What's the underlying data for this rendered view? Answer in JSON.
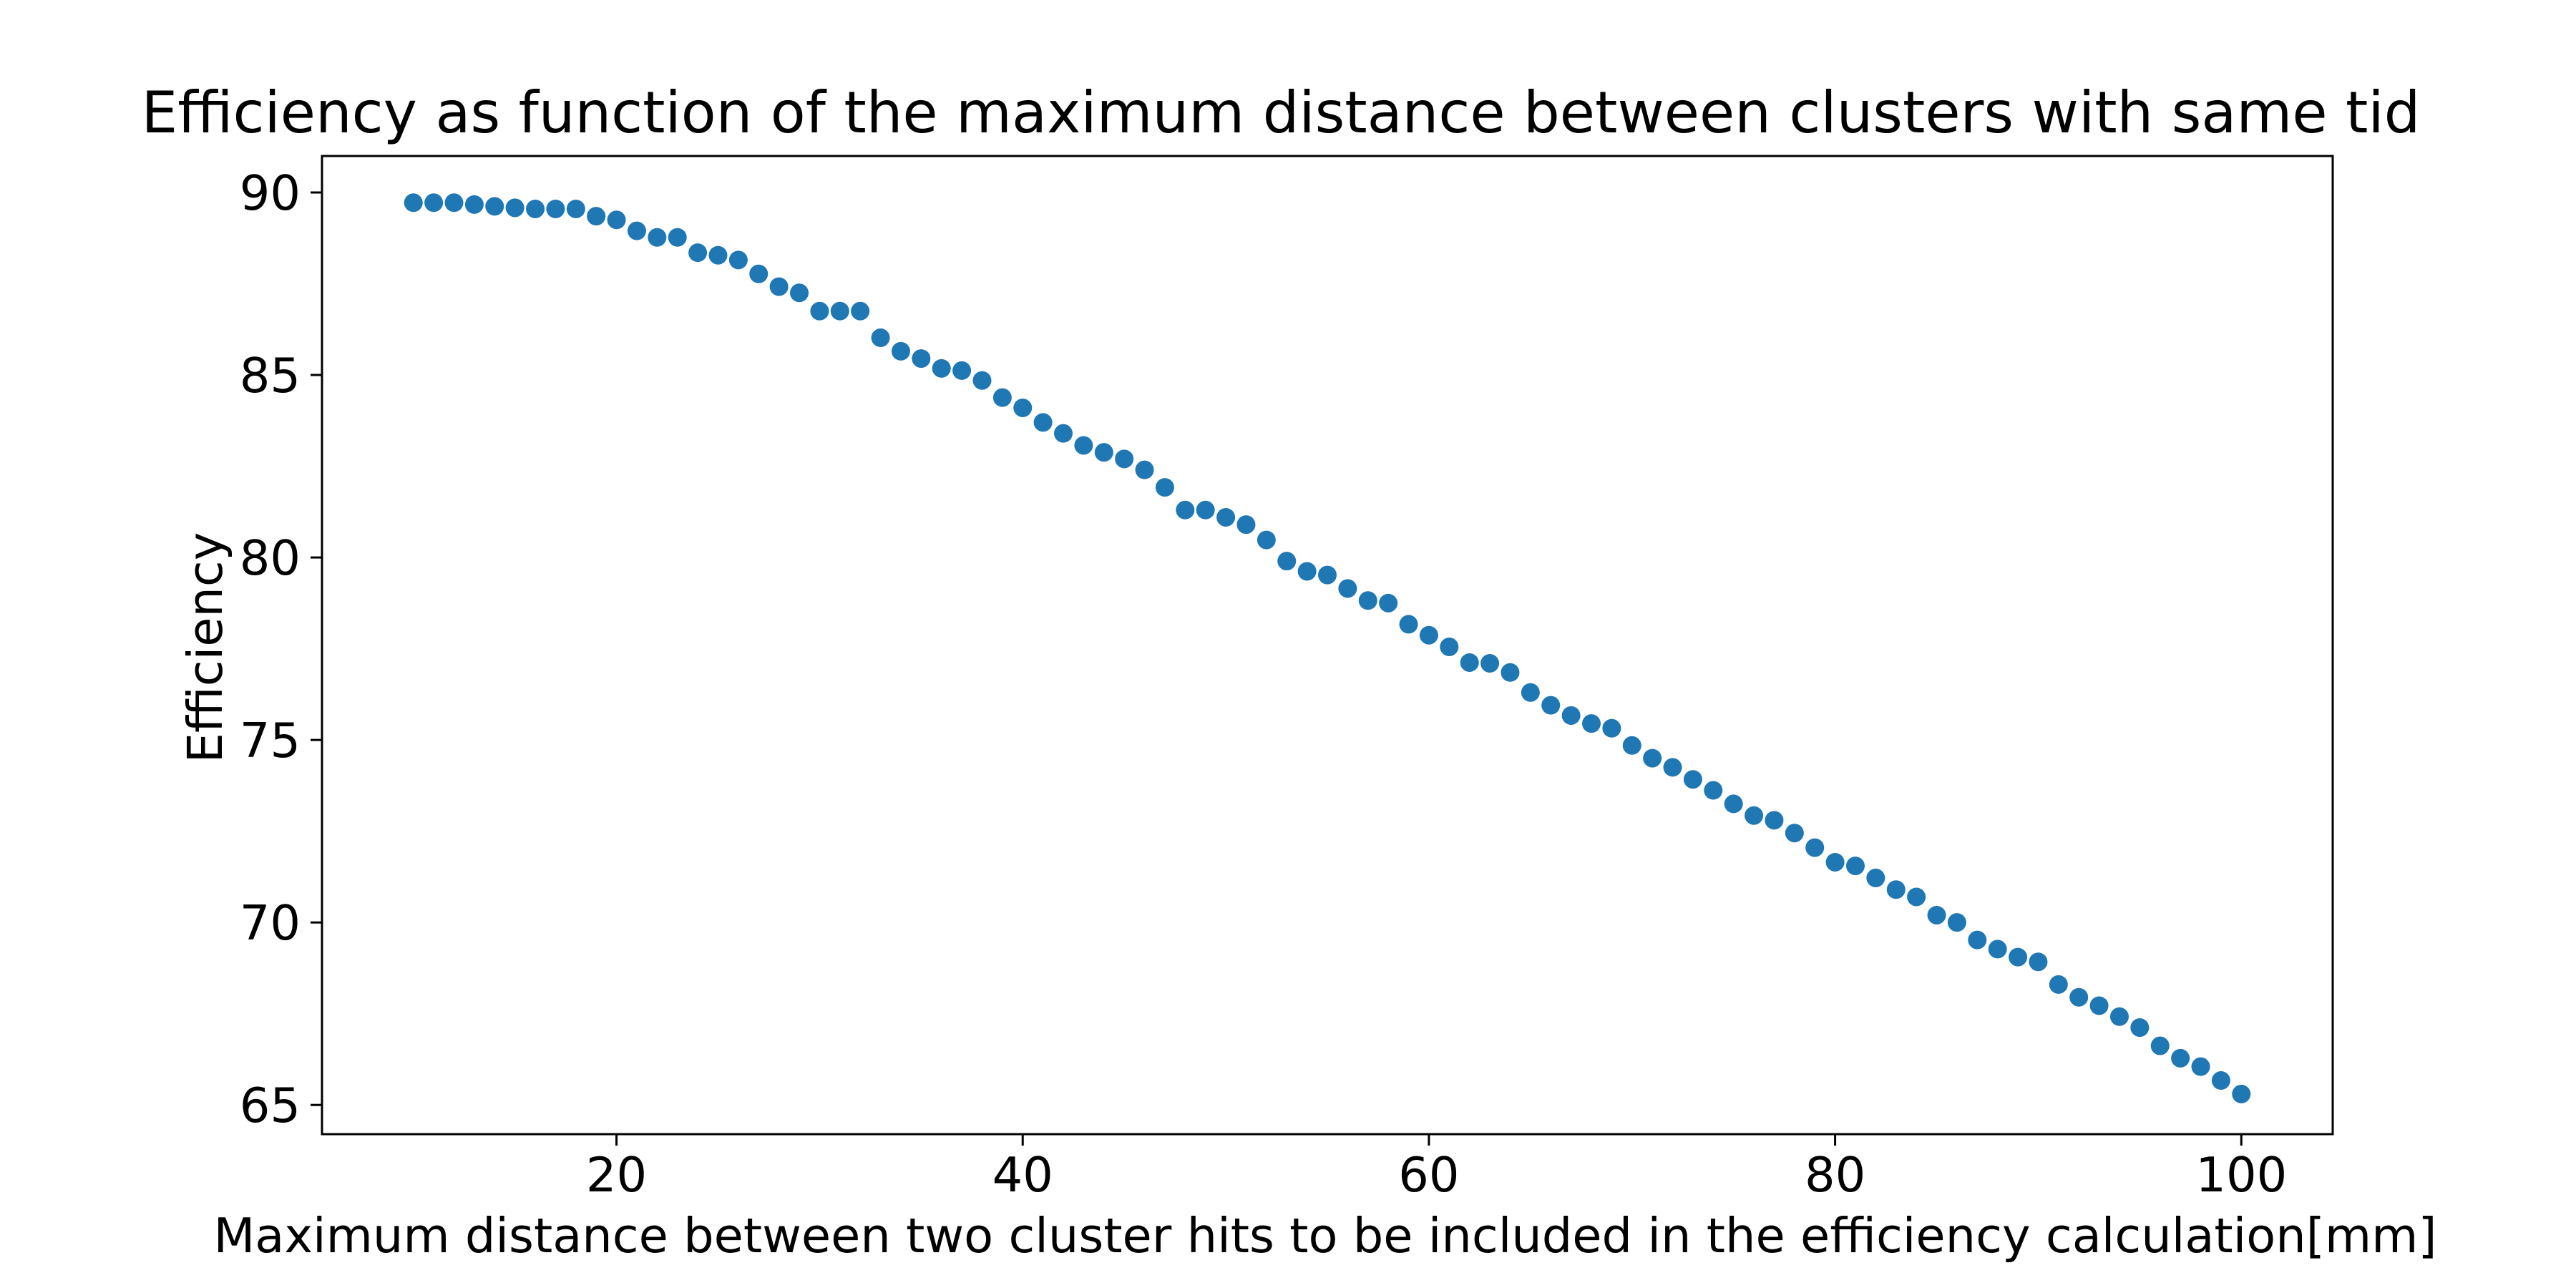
{
  "chart_data": {
    "type": "scatter",
    "title": "Efficiency as function of the maximum distance between clusters with same tid",
    "xlabel": "Maximum distance between two cluster hits to be included in the efficiency calculation[mm]",
    "ylabel": "Efficiency",
    "xlim": [
      5.5,
      104.5
    ],
    "ylim": [
      64.2,
      91.0
    ],
    "xticks": [
      20,
      40,
      60,
      80,
      100
    ],
    "yticks": [
      65,
      70,
      75,
      80,
      85,
      90
    ],
    "grid": false,
    "marker_color": "#1f77b4",
    "series": [
      {
        "x": [
          10,
          11,
          12,
          13,
          14,
          15,
          16,
          17,
          18,
          19,
          20,
          21,
          22,
          23,
          24,
          25,
          26,
          27,
          28,
          29,
          30,
          31,
          32,
          33,
          34,
          35,
          36,
          37,
          38,
          39,
          40,
          41,
          42,
          43,
          44,
          45,
          46,
          47,
          48,
          49,
          50,
          51,
          52,
          53,
          54,
          55,
          56,
          57,
          58,
          59,
          60,
          61,
          62,
          63,
          64,
          65,
          66,
          67,
          68,
          69,
          70,
          71,
          72,
          73,
          74,
          75,
          76,
          77,
          78,
          79,
          80,
          81,
          82,
          83,
          84,
          85,
          86,
          87,
          88,
          89,
          90,
          91,
          92,
          93,
          94,
          95,
          96,
          97,
          98,
          99,
          100
        ],
        "y": [
          89.72,
          89.72,
          89.72,
          89.67,
          89.62,
          89.58,
          89.55,
          89.55,
          89.55,
          89.35,
          89.25,
          88.95,
          88.77,
          88.77,
          88.35,
          88.28,
          88.15,
          87.77,
          87.42,
          87.25,
          86.75,
          86.75,
          86.75,
          86.02,
          85.65,
          85.45,
          85.18,
          85.12,
          84.85,
          84.38,
          84.1,
          83.7,
          83.4,
          83.07,
          82.88,
          82.7,
          82.4,
          81.92,
          81.3,
          81.3,
          81.1,
          80.9,
          80.48,
          79.9,
          79.62,
          79.52,
          79.15,
          78.82,
          78.75,
          78.17,
          77.87,
          77.55,
          77.12,
          77.1,
          76.85,
          76.3,
          75.95,
          75.67,
          75.45,
          75.32,
          74.85,
          74.5,
          74.25,
          73.92,
          73.62,
          73.25,
          72.93,
          72.8,
          72.45,
          72.05,
          71.65,
          71.55,
          71.22,
          70.9,
          70.7,
          70.2,
          70.0,
          69.52,
          69.27,
          69.05,
          68.92,
          68.3,
          67.95,
          67.72,
          67.42,
          67.12,
          66.62,
          66.28,
          66.05,
          65.67,
          65.3
        ]
      }
    ]
  }
}
